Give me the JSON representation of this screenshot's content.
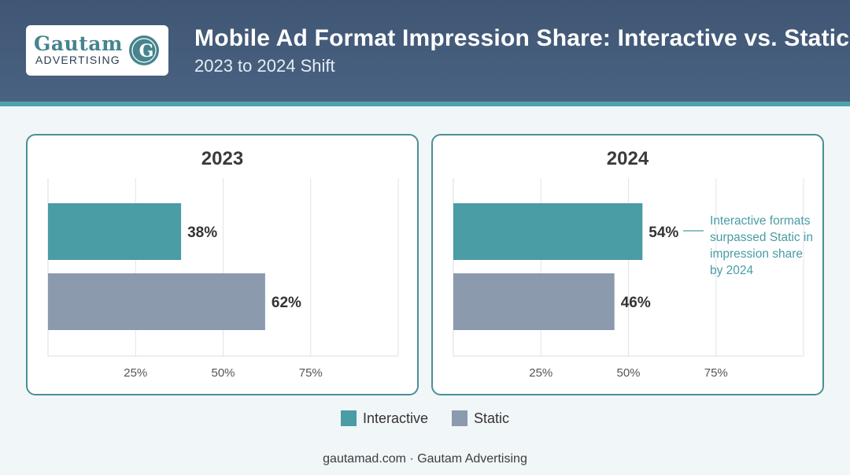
{
  "header": {
    "logo_name": "Gautam",
    "logo_sub": "ADVERTISING",
    "logo_emblem_text": "GAUTAM",
    "title": "Mobile Ad Format Impression Share: Interactive vs. Static",
    "subtitle": "2023 to 2024 Shift"
  },
  "colors": {
    "interactive": "#4a9ca5",
    "static": "#8b9aad",
    "accent": "#4a8f96",
    "header_bg": "#44597a"
  },
  "chart_data": [
    {
      "type": "bar",
      "orientation": "horizontal",
      "title": "2023",
      "categories": [
        "Interactive",
        "Static"
      ],
      "values": [
        38,
        62
      ],
      "value_labels": [
        "38%",
        "62%"
      ],
      "xlim": [
        0,
        100
      ],
      "xticks": [
        25,
        50,
        75
      ],
      "xtick_labels": [
        "25%",
        "50%",
        "75%"
      ],
      "grid": true
    },
    {
      "type": "bar",
      "orientation": "horizontal",
      "title": "2024",
      "categories": [
        "Interactive",
        "Static"
      ],
      "values": [
        54,
        46
      ],
      "value_labels": [
        "54%",
        "46%"
      ],
      "xlim": [
        0,
        100
      ],
      "xticks": [
        25,
        50,
        75
      ],
      "xtick_labels": [
        "25%",
        "50%",
        "75%"
      ],
      "grid": true,
      "annotation": {
        "target": "Interactive",
        "lines": [
          "Interactive formats",
          "surpassed Static in",
          "impression share",
          "by 2024"
        ]
      }
    }
  ],
  "legend": [
    {
      "label": "Interactive",
      "color": "#4a9ca5"
    },
    {
      "label": "Static",
      "color": "#8b9aad"
    }
  ],
  "footer": "gautamad.com · Gautam Advertising"
}
